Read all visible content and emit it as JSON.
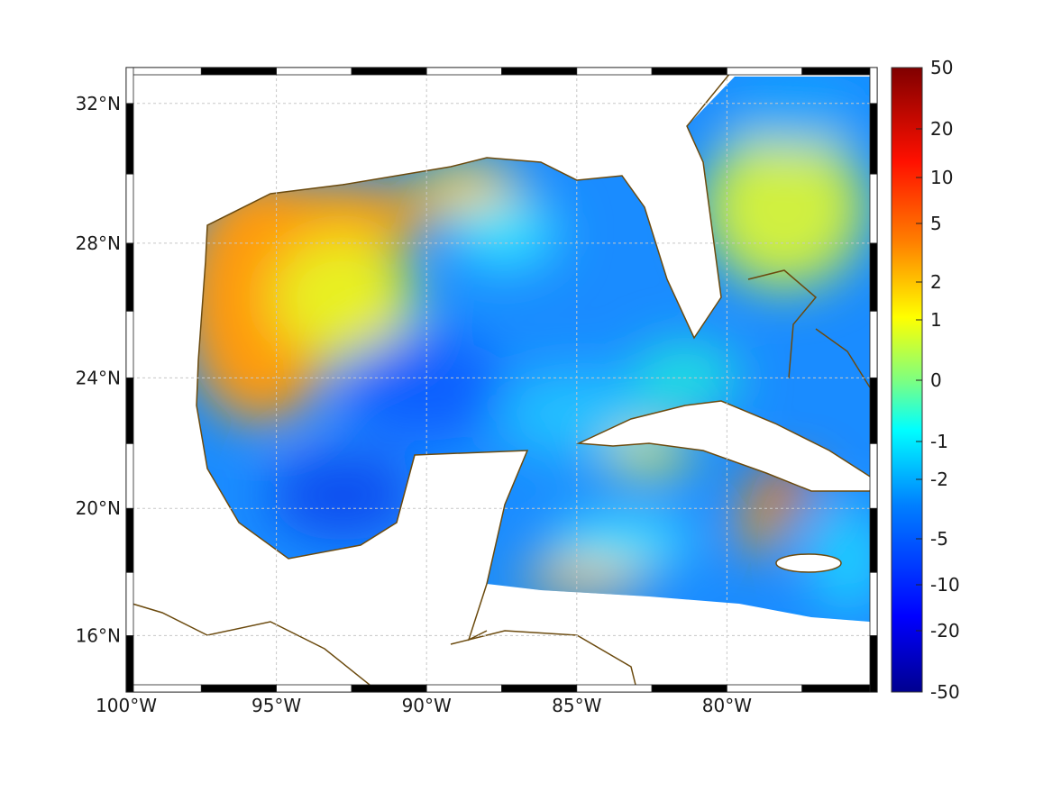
{
  "map": {
    "lon_labels": [
      "100°W",
      "95°W",
      "90°W",
      "85°W",
      "80°W"
    ],
    "lat_labels": [
      "32°N",
      "28°N",
      "24°N",
      "20°N",
      "16°N"
    ],
    "lon_values": [
      -100,
      -95,
      -90,
      -85,
      -80
    ],
    "lat_values": [
      32,
      28,
      24,
      20,
      16
    ],
    "extent": {
      "lon": [
        -100,
        -75
      ],
      "lat": [
        14.2,
        33
      ]
    }
  },
  "colorbar": {
    "tick_labels": [
      "50",
      "20",
      "10",
      "5",
      "2",
      "1",
      "0",
      "-1",
      "-2",
      "-5",
      "-10",
      "-20",
      "-50"
    ],
    "colormap": "jet",
    "colors": {
      "min": "#00008f",
      "max": "#800000"
    }
  },
  "colors": {
    "coastline": "#6b4a0e",
    "grid": "#c8c8c8"
  }
}
